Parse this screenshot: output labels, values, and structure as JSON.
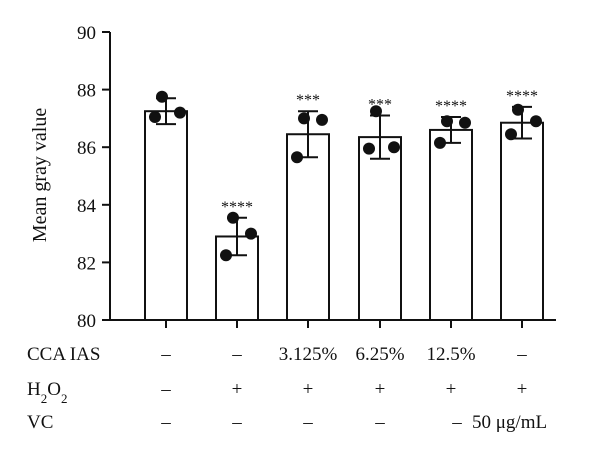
{
  "chart_data": {
    "type": "bar",
    "ylabel": "Mean gray value",
    "ylim": [
      80,
      90
    ],
    "yticks": [
      80,
      82,
      84,
      86,
      88,
      90
    ],
    "grid": false,
    "bars": [
      {
        "mean": 87.25,
        "sd": 0.45,
        "points": [
          87.75,
          87.2,
          87.05
        ],
        "sig": ""
      },
      {
        "mean": 82.9,
        "sd": 0.65,
        "points": [
          83.55,
          83.0,
          82.25
        ],
        "sig": "****"
      },
      {
        "mean": 86.45,
        "sd": 0.8,
        "points": [
          87.0,
          86.95,
          85.65
        ],
        "sig": "***"
      },
      {
        "mean": 86.35,
        "sd": 0.75,
        "points": [
          87.25,
          86.0,
          85.95
        ],
        "sig": "***"
      },
      {
        "mean": 86.6,
        "sd": 0.45,
        "points": [
          86.9,
          86.85,
          86.15
        ],
        "sig": "****"
      },
      {
        "mean": 86.85,
        "sd": 0.55,
        "points": [
          87.3,
          86.9,
          86.45
        ],
        "sig": "****"
      }
    ],
    "conditions": [
      {
        "label": "CCA IAS",
        "values": [
          "–",
          "–",
          "3.125%",
          "6.25%",
          "12.5%",
          "–"
        ]
      },
      {
        "label_main": "H",
        "label_sub1": "2",
        "label_mid": "O",
        "label_sub2": "2",
        "values": [
          "–",
          "+",
          "+",
          "+",
          "+",
          "+"
        ]
      },
      {
        "label": "VC",
        "values": [
          "–",
          "–",
          "–",
          "–",
          "–",
          "50 μg/mL"
        ]
      }
    ]
  },
  "colors": {
    "bar_fill": "#ffffff",
    "bar_stroke": "#111111",
    "point": "#111111",
    "axis": "#111111"
  }
}
